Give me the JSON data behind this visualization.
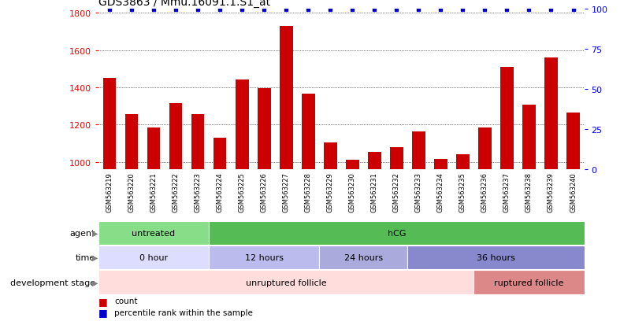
{
  "title": "GDS3863 / Mmu.16091.1.S1_at",
  "samples": [
    "GSM563219",
    "GSM563220",
    "GSM563221",
    "GSM563222",
    "GSM563223",
    "GSM563224",
    "GSM563225",
    "GSM563226",
    "GSM563227",
    "GSM563228",
    "GSM563229",
    "GSM563230",
    "GSM563231",
    "GSM563232",
    "GSM563233",
    "GSM563234",
    "GSM563235",
    "GSM563236",
    "GSM563237",
    "GSM563238",
    "GSM563239",
    "GSM563240"
  ],
  "counts": [
    1450,
    1255,
    1185,
    1315,
    1255,
    1130,
    1440,
    1395,
    1730,
    1365,
    1105,
    1010,
    1055,
    1080,
    1165,
    1015,
    1040,
    1185,
    1510,
    1305,
    1560,
    1265
  ],
  "ylim_left": [
    960,
    1820
  ],
  "yticks_left": [
    1000,
    1200,
    1400,
    1600,
    1800
  ],
  "yticks_right": [
    0,
    25,
    50,
    75,
    100
  ],
  "bar_color": "#cc0000",
  "dot_color": "#0000cc",
  "background_color": "#ffffff",
  "agent_groups": [
    {
      "label": "untreated",
      "start": 0,
      "end": 5,
      "color": "#88dd88"
    },
    {
      "label": "hCG",
      "start": 5,
      "end": 22,
      "color": "#55bb55"
    }
  ],
  "time_groups": [
    {
      "label": "0 hour",
      "start": 0,
      "end": 5,
      "color": "#ddddff"
    },
    {
      "label": "12 hours",
      "start": 5,
      "end": 10,
      "color": "#bbbbee"
    },
    {
      "label": "24 hours",
      "start": 10,
      "end": 14,
      "color": "#aaaadd"
    },
    {
      "label": "36 hours",
      "start": 14,
      "end": 22,
      "color": "#8888cc"
    }
  ],
  "dev_groups": [
    {
      "label": "unruptured follicle",
      "start": 0,
      "end": 17,
      "color": "#ffdddd"
    },
    {
      "label": "ruptured follicle",
      "start": 17,
      "end": 22,
      "color": "#dd8888"
    }
  ],
  "row_labels": [
    "agent",
    "time",
    "development stage"
  ],
  "legend_count_color": "#cc0000",
  "legend_pct_color": "#0000cc",
  "xtick_bg": "#d8d8d8",
  "xticklabel_fontsize": 6.0,
  "bar_width": 0.6
}
